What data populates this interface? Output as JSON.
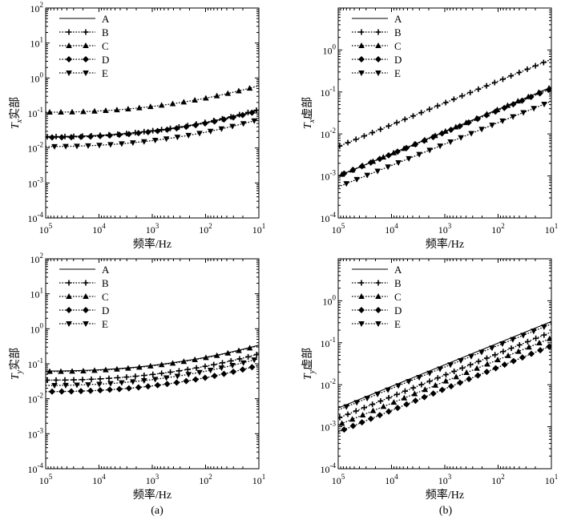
{
  "chart_data": [
    {
      "id": "a-top",
      "type": "line",
      "scale": "log-log",
      "x_reversed": true,
      "xlabel": "频率/Hz",
      "ylabel_sym": "T",
      "ylabel_sub": "x",
      "ylabel_suffix": "实部",
      "xlim": [
        100000,
        10
      ],
      "ylim": [
        0.0001,
        100
      ],
      "x_ticks": [
        {
          "base": "10",
          "exp": "5"
        },
        {
          "base": "10",
          "exp": "4"
        },
        {
          "base": "10",
          "exp": "3"
        },
        {
          "base": "10",
          "exp": "2"
        },
        {
          "base": "10",
          "exp": "1"
        }
      ],
      "y_ticks": [
        {
          "base": "10",
          "exp": "-4"
        },
        {
          "base": "10",
          "exp": "-3"
        },
        {
          "base": "10",
          "exp": "-2"
        },
        {
          "base": "10",
          "exp": "-1"
        },
        {
          "base": "10",
          "exp": "0"
        },
        {
          "base": "10",
          "exp": "1"
        },
        {
          "base": "10",
          "exp": "2"
        }
      ],
      "legend_position": "top-left",
      "series": [
        {
          "name": "A",
          "marker": "none",
          "style": "solid",
          "x": [
            100000,
            10
          ],
          "y": [
            0.021,
            0.12
          ]
        },
        {
          "name": "B",
          "marker": "plus",
          "style": "dotted",
          "x": [
            100000,
            10
          ],
          "y": [
            0.021,
            0.125
          ]
        },
        {
          "name": "C",
          "marker": "triangle-up",
          "style": "dotted",
          "x": [
            100000,
            10
          ],
          "y": [
            0.105,
            0.6
          ]
        },
        {
          "name": "D",
          "marker": "diamond",
          "style": "dotted",
          "x": [
            100000,
            10
          ],
          "y": [
            0.02,
            0.115
          ]
        },
        {
          "name": "E",
          "marker": "triangle-down",
          "style": "dotted",
          "x": [
            100000,
            10
          ],
          "y": [
            0.011,
            0.065
          ]
        }
      ]
    },
    {
      "id": "b-top",
      "type": "line",
      "scale": "log-log",
      "x_reversed": true,
      "xlabel": "频率/Hz",
      "ylabel_sym": "T",
      "ylabel_sub": "x",
      "ylabel_suffix": "虚部",
      "xlim": [
        100000,
        10
      ],
      "ylim": [
        0.0001,
        10
      ],
      "x_ticks": [
        {
          "base": "10",
          "exp": "5"
        },
        {
          "base": "10",
          "exp": "4"
        },
        {
          "base": "10",
          "exp": "3"
        },
        {
          "base": "10",
          "exp": "2"
        },
        {
          "base": "10",
          "exp": "1"
        }
      ],
      "y_ticks": [
        {
          "base": "10",
          "exp": "-4"
        },
        {
          "base": "10",
          "exp": "-3"
        },
        {
          "base": "10",
          "exp": "-2"
        },
        {
          "base": "10",
          "exp": "-1"
        },
        {
          "base": "10",
          "exp": "0"
        }
      ],
      "legend_position": "top-left",
      "series": [
        {
          "name": "A",
          "marker": "none",
          "style": "solid",
          "x": [
            100000,
            10
          ],
          "y": [
            0.001,
            0.13
          ]
        },
        {
          "name": "B",
          "marker": "plus",
          "style": "dotted",
          "x": [
            100000,
            10
          ],
          "y": [
            0.005,
            0.6
          ]
        },
        {
          "name": "C",
          "marker": "triangle-up",
          "style": "dotted",
          "x": [
            100000,
            10
          ],
          "y": [
            0.001,
            0.13
          ]
        },
        {
          "name": "D",
          "marker": "diamond",
          "style": "dotted",
          "x": [
            100000,
            10
          ],
          "y": [
            0.001,
            0.12
          ]
        },
        {
          "name": "E",
          "marker": "triangle-down",
          "style": "dotted",
          "x": [
            100000,
            10
          ],
          "y": [
            0.00055,
            0.06
          ]
        }
      ]
    },
    {
      "id": "a-bottom",
      "type": "line",
      "scale": "log-log",
      "x_reversed": true,
      "xlabel": "频率/Hz",
      "ylabel_sym": "T",
      "ylabel_sub": "y",
      "ylabel_suffix": "实部",
      "xlim": [
        100000,
        10
      ],
      "ylim": [
        0.0001,
        100
      ],
      "x_ticks": [
        {
          "base": "10",
          "exp": "5"
        },
        {
          "base": "10",
          "exp": "4"
        },
        {
          "base": "10",
          "exp": "3"
        },
        {
          "base": "10",
          "exp": "2"
        },
        {
          "base": "10",
          "exp": "1"
        }
      ],
      "y_ticks": [
        {
          "base": "10",
          "exp": "-4"
        },
        {
          "base": "10",
          "exp": "-3"
        },
        {
          "base": "10",
          "exp": "-2"
        },
        {
          "base": "10",
          "exp": "-1"
        },
        {
          "base": "10",
          "exp": "0"
        },
        {
          "base": "10",
          "exp": "1"
        },
        {
          "base": "10",
          "exp": "2"
        }
      ],
      "legend_position": "top-left",
      "series": [
        {
          "name": "A",
          "marker": "none",
          "style": "solid",
          "x": [
            100000,
            10
          ],
          "y": [
            0.062,
            0.34
          ]
        },
        {
          "name": "B",
          "marker": "plus",
          "style": "dotted",
          "x": [
            100000,
            10
          ],
          "y": [
            0.034,
            0.19
          ]
        },
        {
          "name": "C",
          "marker": "triangle-up",
          "style": "dotted",
          "x": [
            100000,
            10
          ],
          "y": [
            0.06,
            0.33
          ]
        },
        {
          "name": "D",
          "marker": "diamond",
          "style": "dotted",
          "x": [
            100000,
            10
          ],
          "y": [
            0.016,
            0.09
          ]
        },
        {
          "name": "E",
          "marker": "triangle-down",
          "style": "dotted",
          "x": [
            100000,
            10
          ],
          "y": [
            0.024,
            0.14
          ]
        }
      ]
    },
    {
      "id": "b-bottom",
      "type": "line",
      "scale": "log-log",
      "x_reversed": true,
      "xlabel": "频率/Hz",
      "ylabel_sym": "T",
      "ylabel_sub": "y",
      "ylabel_suffix": "虚部",
      "xlim": [
        100000,
        10
      ],
      "ylim": [
        0.0001,
        10
      ],
      "x_ticks": [
        {
          "base": "10",
          "exp": "5"
        },
        {
          "base": "10",
          "exp": "4"
        },
        {
          "base": "10",
          "exp": "3"
        },
        {
          "base": "10",
          "exp": "2"
        },
        {
          "base": "10",
          "exp": "1"
        }
      ],
      "y_ticks": [
        {
          "base": "10",
          "exp": "-4"
        },
        {
          "base": "10",
          "exp": "-3"
        },
        {
          "base": "10",
          "exp": "-2"
        },
        {
          "base": "10",
          "exp": "-1"
        },
        {
          "base": "10",
          "exp": "0"
        }
      ],
      "legend_position": "top-left",
      "series": [
        {
          "name": "A",
          "marker": "none",
          "style": "solid",
          "x": [
            100000,
            10
          ],
          "y": [
            0.0028,
            0.32
          ]
        },
        {
          "name": "B",
          "marker": "plus",
          "style": "dotted",
          "x": [
            100000,
            10
          ],
          "y": [
            0.0016,
            0.18
          ]
        },
        {
          "name": "C",
          "marker": "triangle-up",
          "style": "dotted",
          "x": [
            100000,
            10
          ],
          "y": [
            0.0011,
            0.13
          ]
        },
        {
          "name": "D",
          "marker": "diamond",
          "style": "dotted",
          "x": [
            100000,
            10
          ],
          "y": [
            0.00075,
            0.085
          ]
        },
        {
          "name": "E",
          "marker": "triangle-down",
          "style": "dotted",
          "x": [
            100000,
            10
          ],
          "y": [
            0.0025,
            0.28
          ]
        }
      ]
    }
  ],
  "captions": {
    "left": "(a)",
    "right": "(b)"
  }
}
